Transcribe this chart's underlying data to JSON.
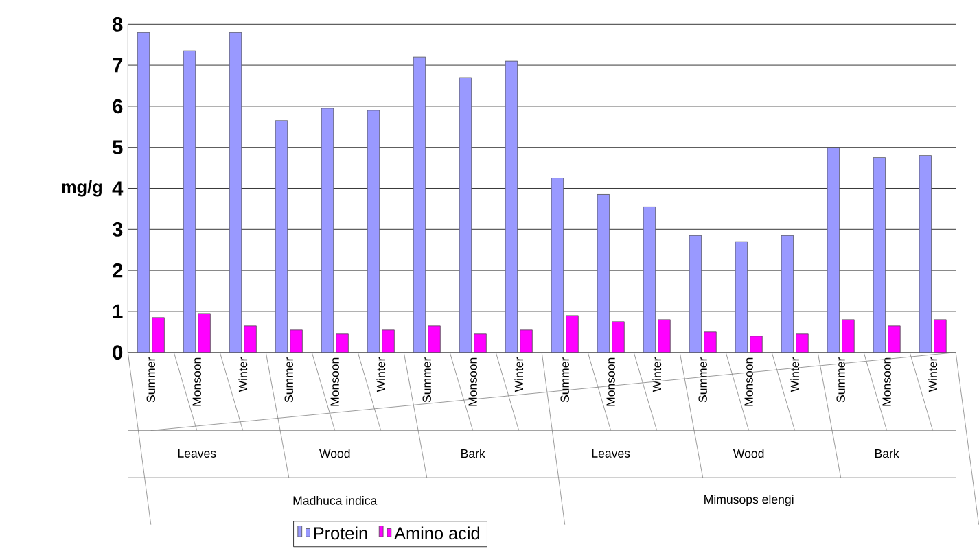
{
  "chart_data": {
    "type": "bar",
    "categories": [
      "Summer",
      "Monsoon",
      "Winter",
      "Summer",
      "Monsoon",
      "Winter",
      "Summer",
      "Monsoon",
      "Winter",
      "Summer",
      "Monsoon",
      "Winter",
      "Summer",
      "Monsoon",
      "Winter",
      "Summer",
      "Monsoon",
      "Winter"
    ],
    "ylabel": "mg/g",
    "series": [
      {
        "name": "Protein",
        "color": "#9999ff",
        "values": [
          7.8,
          7.35,
          7.8,
          5.65,
          5.95,
          5.9,
          7.2,
          6.7,
          7.1,
          4.25,
          3.85,
          3.55,
          2.85,
          2.7,
          2.85,
          5.0,
          4.75,
          4.8
        ]
      },
      {
        "name": "Amino acid",
        "color": "#ff00ff",
        "values": [
          0.85,
          0.95,
          0.65,
          0.55,
          0.45,
          0.55,
          0.65,
          0.45,
          0.55,
          0.9,
          0.75,
          0.8,
          0.5,
          0.4,
          0.45,
          0.8,
          0.65,
          0.8
        ]
      }
    ],
    "annotations": [
      "Leaves",
      "Wood",
      "Bark",
      "Leaves",
      "Wood",
      "Bark",
      "Madhuca indica",
      "Mimusops elengi"
    ],
    "ylim": [
      0,
      8
    ],
    "yticks": [
      0,
      1,
      2,
      3,
      4,
      5,
      6,
      7,
      8
    ],
    "grid": "y",
    "legend": "bottom"
  }
}
